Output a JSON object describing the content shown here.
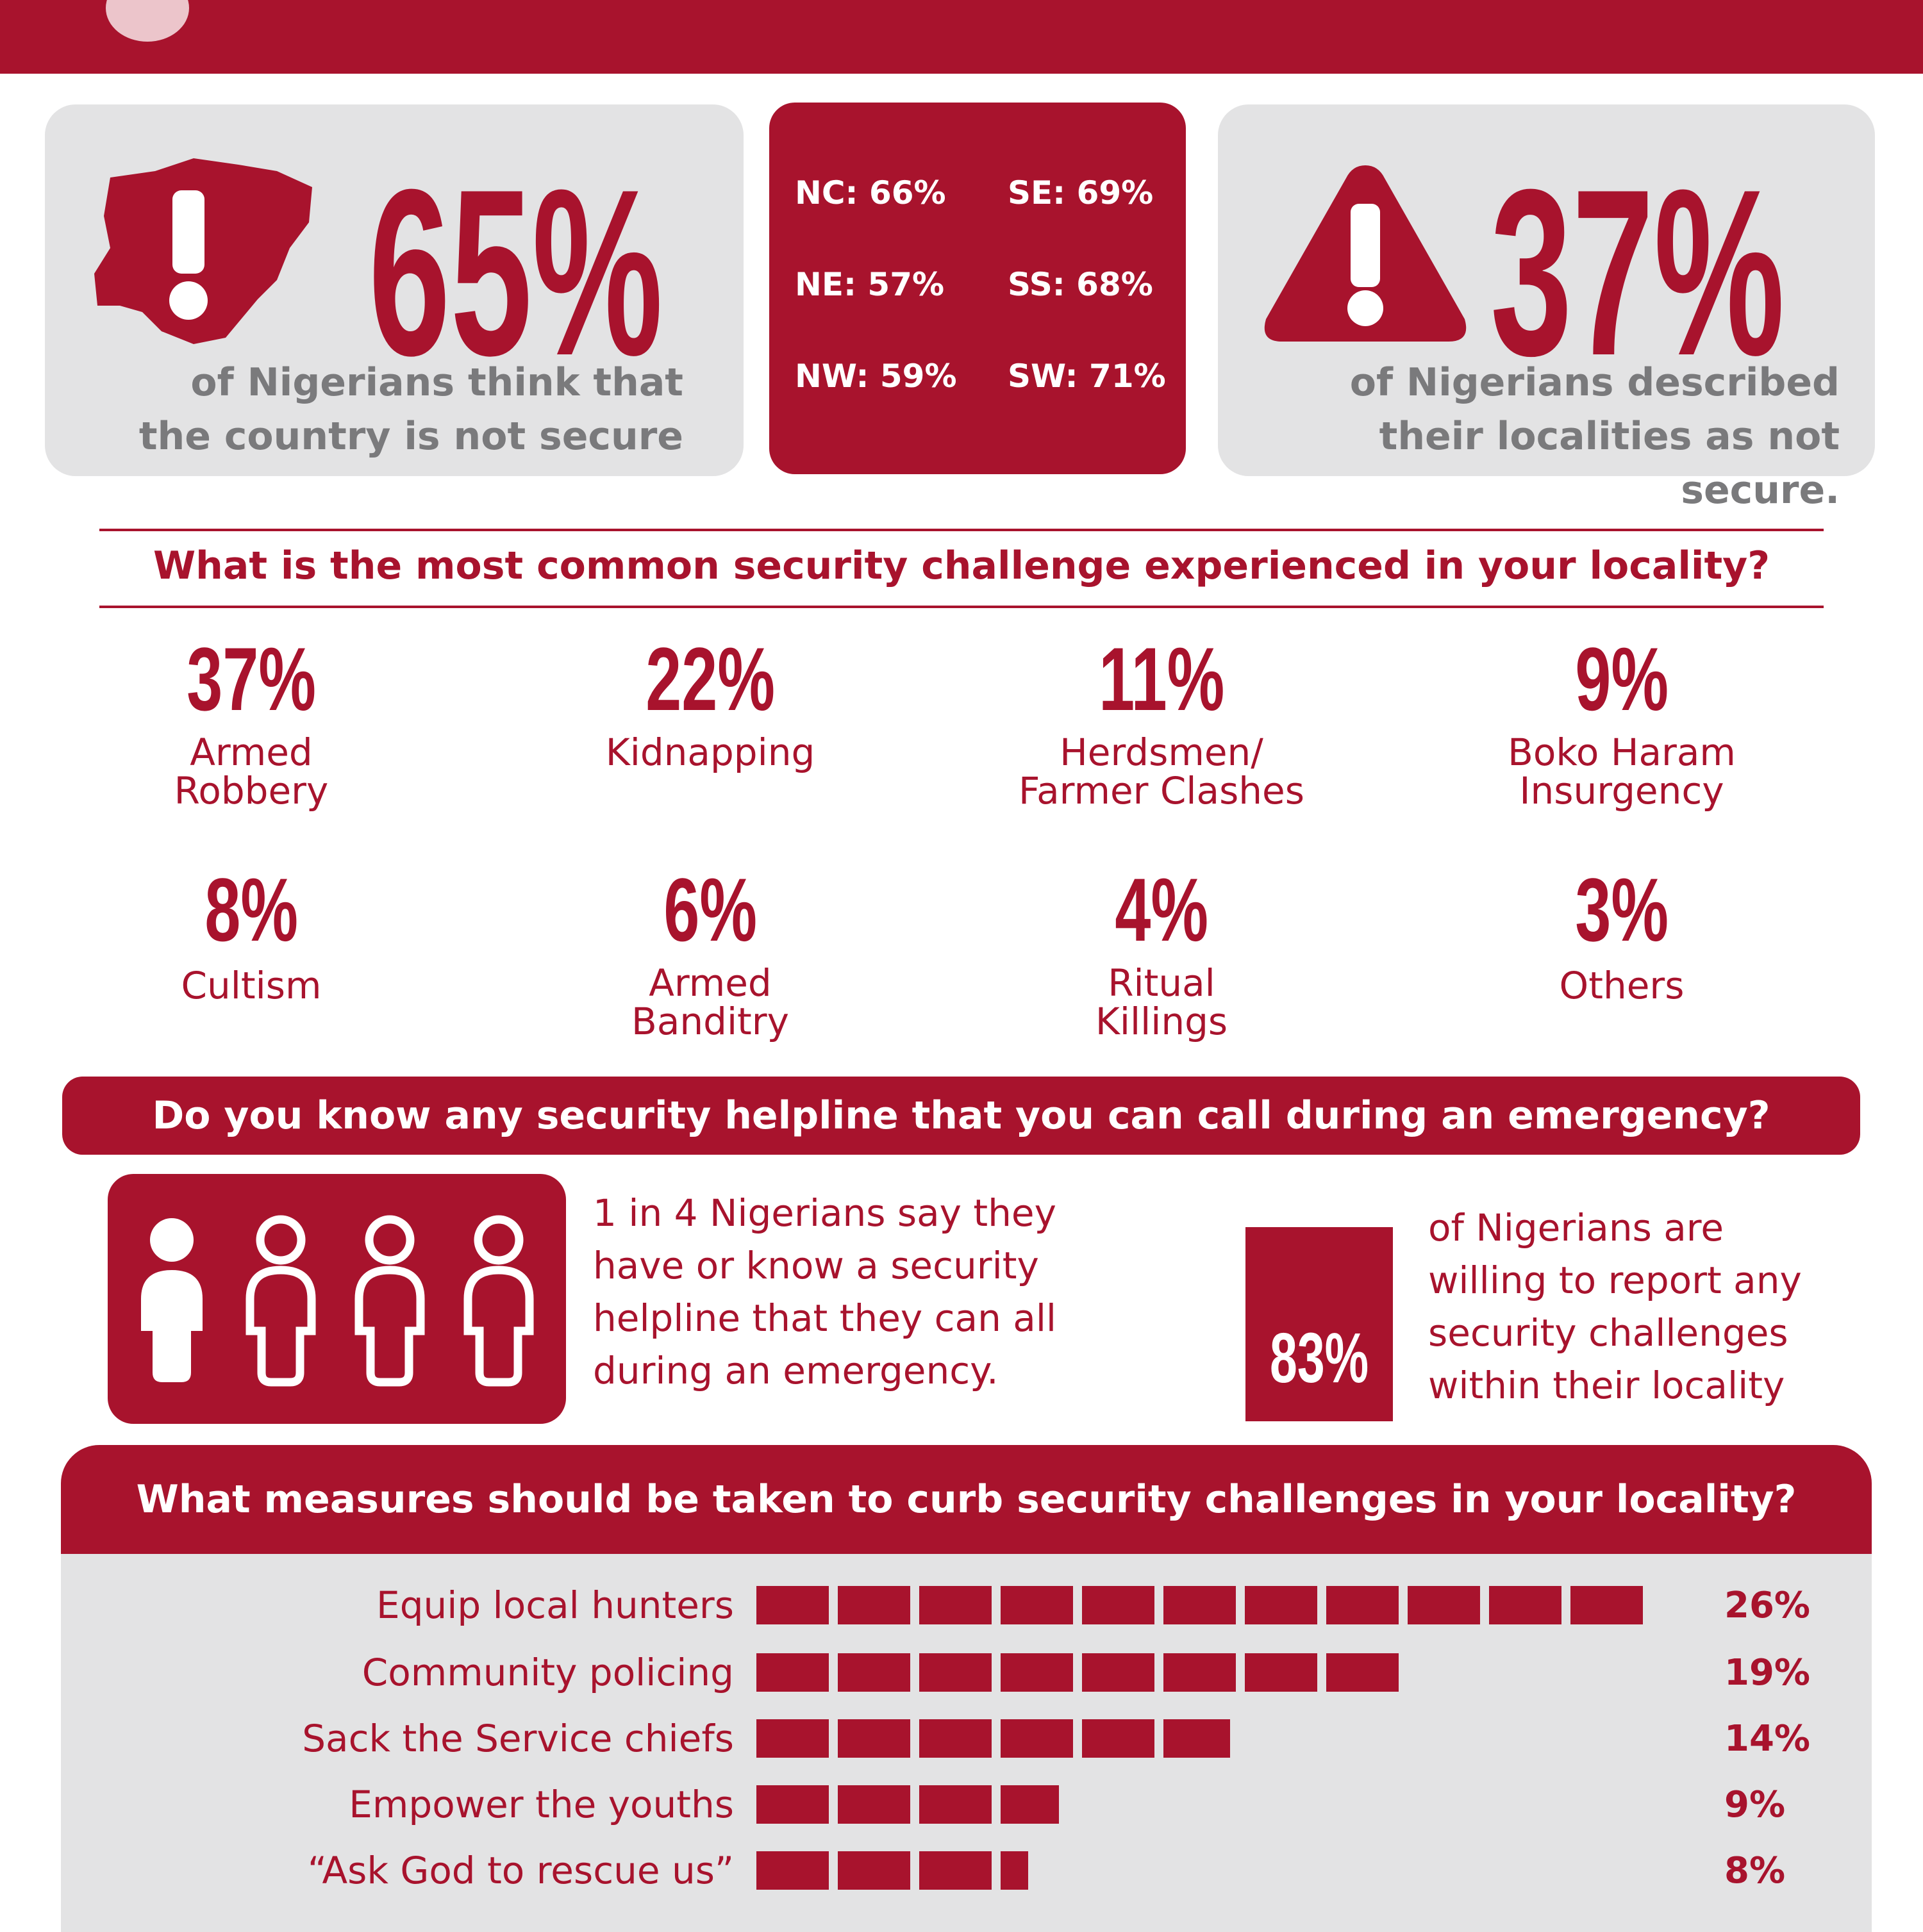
{
  "colors": {
    "accent": "#a8132d",
    "panel": "#e3e3e4",
    "text_grey": "#7a7a7c"
  },
  "stat_country": {
    "icon": "nigeria-map-alert-icon",
    "pct": "65%",
    "text": "of Nigerians  think that the country is not secure"
  },
  "regions": [
    {
      "label": "NC: 66%"
    },
    {
      "label": "SE: 69%"
    },
    {
      "label": "NE: 57%"
    },
    {
      "label": "SS: 68%"
    },
    {
      "label": "NW: 59%"
    },
    {
      "label": "SW: 71%"
    }
  ],
  "stat_locality": {
    "icon": "warning-triangle-icon",
    "pct": "37%",
    "text": "of Nigerians described their localities as not secure."
  },
  "challenge_question": "What is the most common security challenge experienced in your locality?",
  "challenges": [
    {
      "pct": "37%",
      "label": "Armed Robbery"
    },
    {
      "pct": "22%",
      "label": "Kidnapping"
    },
    {
      "pct": "11%",
      "label": "Herdsmen/ Farmer Clashes"
    },
    {
      "pct": "9%",
      "label": "Boko Haram Insurgency"
    },
    {
      "pct": "8%",
      "label": "Cultism"
    },
    {
      "pct": "6%",
      "label": "Armed Banditry"
    },
    {
      "pct": "4%",
      "label": "Ritual Killings"
    },
    {
      "pct": "3%",
      "label": "Others"
    }
  ],
  "helpline_question": "Do you know any security helpline that you can call during an emergency?",
  "helpline_text": "1 in 4 Nigerians say they have or know a security helpline that they can all during an emergency.",
  "helpline_icons": "people-icon",
  "report": {
    "pct": "83%",
    "text": "of Nigerians are willing to report any security challenges within their locality"
  },
  "measures_question": "What measures should be taken to curb security challenges in your locality?",
  "chart_data": {
    "type": "bar",
    "orientation": "horizontal",
    "title": "What measures should be taken to curb security challenges in your locality?",
    "categories": [
      "Equip local hunters",
      "Community policing",
      "Sack the Service chiefs",
      "Empower the youths",
      "“Ask God to rescue us”"
    ],
    "values": [
      26,
      19,
      14,
      9,
      8
    ],
    "value_labels": [
      "26%",
      "19%",
      "14%",
      "9%",
      "8%"
    ],
    "grid": false,
    "legend": "none"
  }
}
